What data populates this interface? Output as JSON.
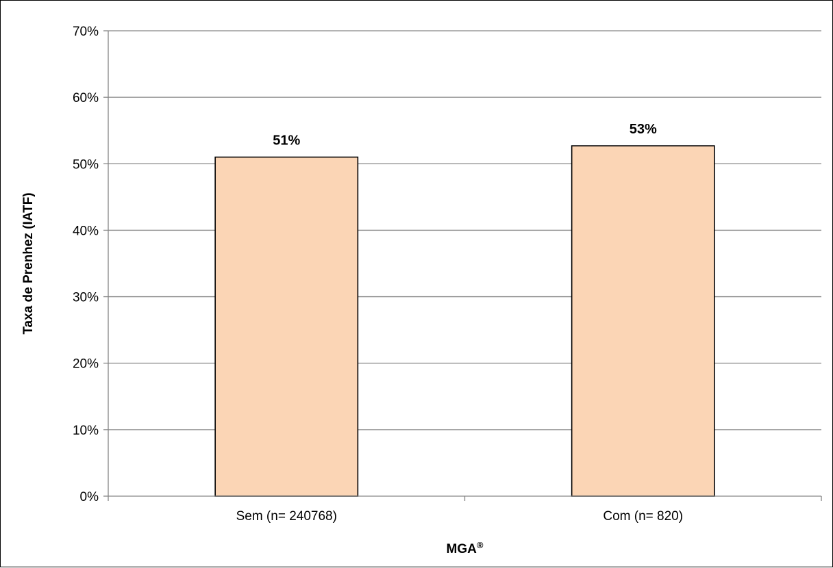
{
  "chart_data": {
    "type": "bar",
    "title": "",
    "xlabel": "MGA",
    "xlabel_superscript": "®",
    "ylabel": "Taxa de Prenhez (IATF)",
    "categories": [
      "Sem (n= 240768)",
      "Com (n= 820)"
    ],
    "values": [
      51,
      52.7
    ],
    "data_labels": [
      "51%",
      "53%"
    ],
    "ylim": [
      0,
      70
    ],
    "yticks": [
      0,
      10,
      20,
      30,
      40,
      50,
      60,
      70
    ],
    "ytick_labels": [
      "0%",
      "10%",
      "20%",
      "30%",
      "40%",
      "50%",
      "60%",
      "70%"
    ],
    "grid": true,
    "legend": "none",
    "colors": {
      "bar_fill": "#FBD5B5",
      "bar_stroke": "#000000",
      "gridline": "#868686",
      "axis": "#868686"
    }
  }
}
